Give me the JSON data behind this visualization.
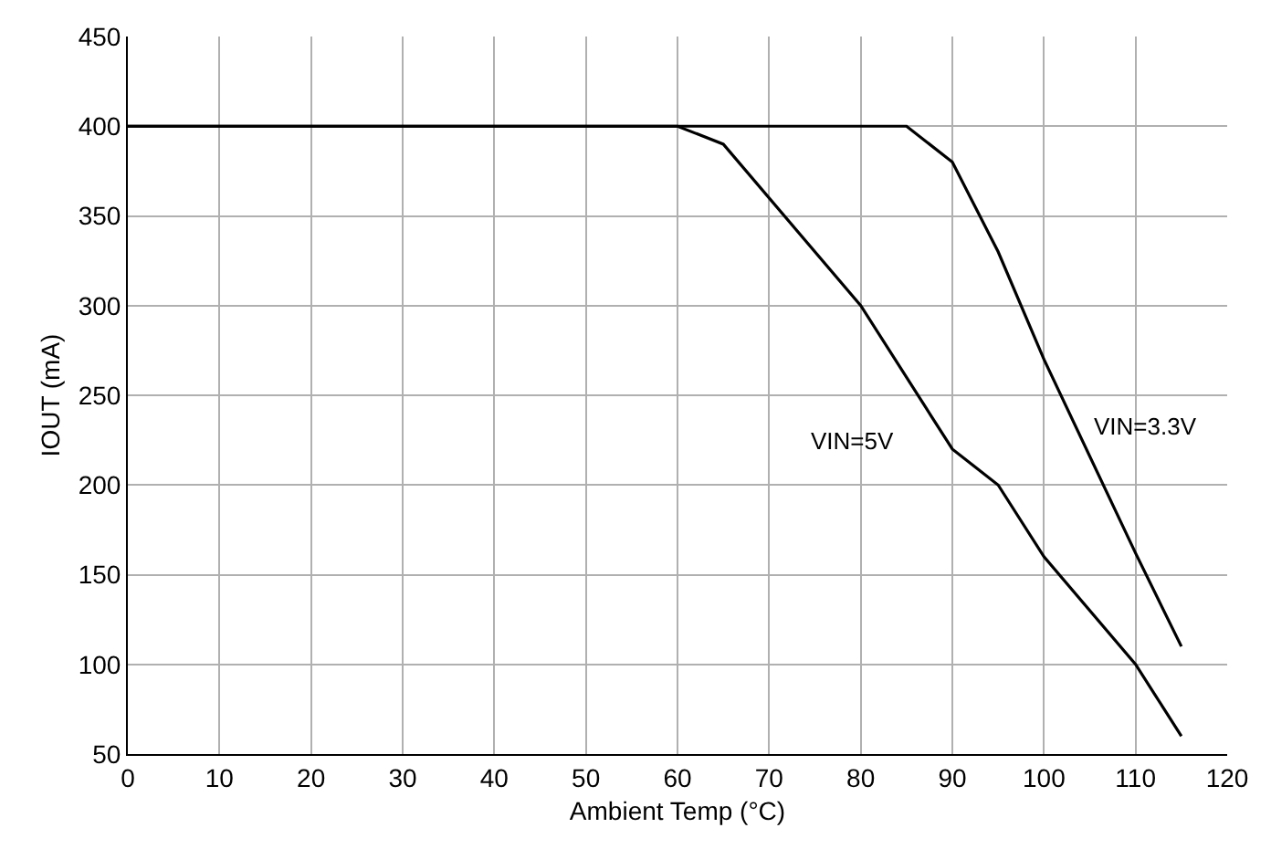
{
  "chart_data": {
    "type": "line",
    "xlabel": "Ambient Temp (°C)",
    "ylabel": "IOUT (mA)",
    "xlim": [
      0,
      120
    ],
    "xticks": [
      0,
      10,
      20,
      30,
      40,
      50,
      60,
      70,
      80,
      90,
      100,
      110,
      120
    ],
    "ylim": [
      50,
      450
    ],
    "yticks": [
      50,
      100,
      150,
      200,
      250,
      300,
      350,
      400,
      450
    ],
    "grid": true,
    "legend": false,
    "marker": "none",
    "line_style": "solid",
    "series": [
      {
        "name": "VIN=5V",
        "color": "#000000",
        "x": [
          0,
          60,
          65,
          80,
          90,
          95,
          100,
          110,
          115
        ],
        "values": [
          400,
          400,
          390,
          300,
          220,
          200,
          160,
          100,
          60
        ]
      },
      {
        "name": "VIN=3.3V",
        "color": "#000000",
        "x": [
          0,
          85,
          90,
          95,
          100,
          110,
          115
        ],
        "values": [
          400,
          400,
          380,
          330,
          270,
          162,
          110
        ]
      }
    ]
  }
}
